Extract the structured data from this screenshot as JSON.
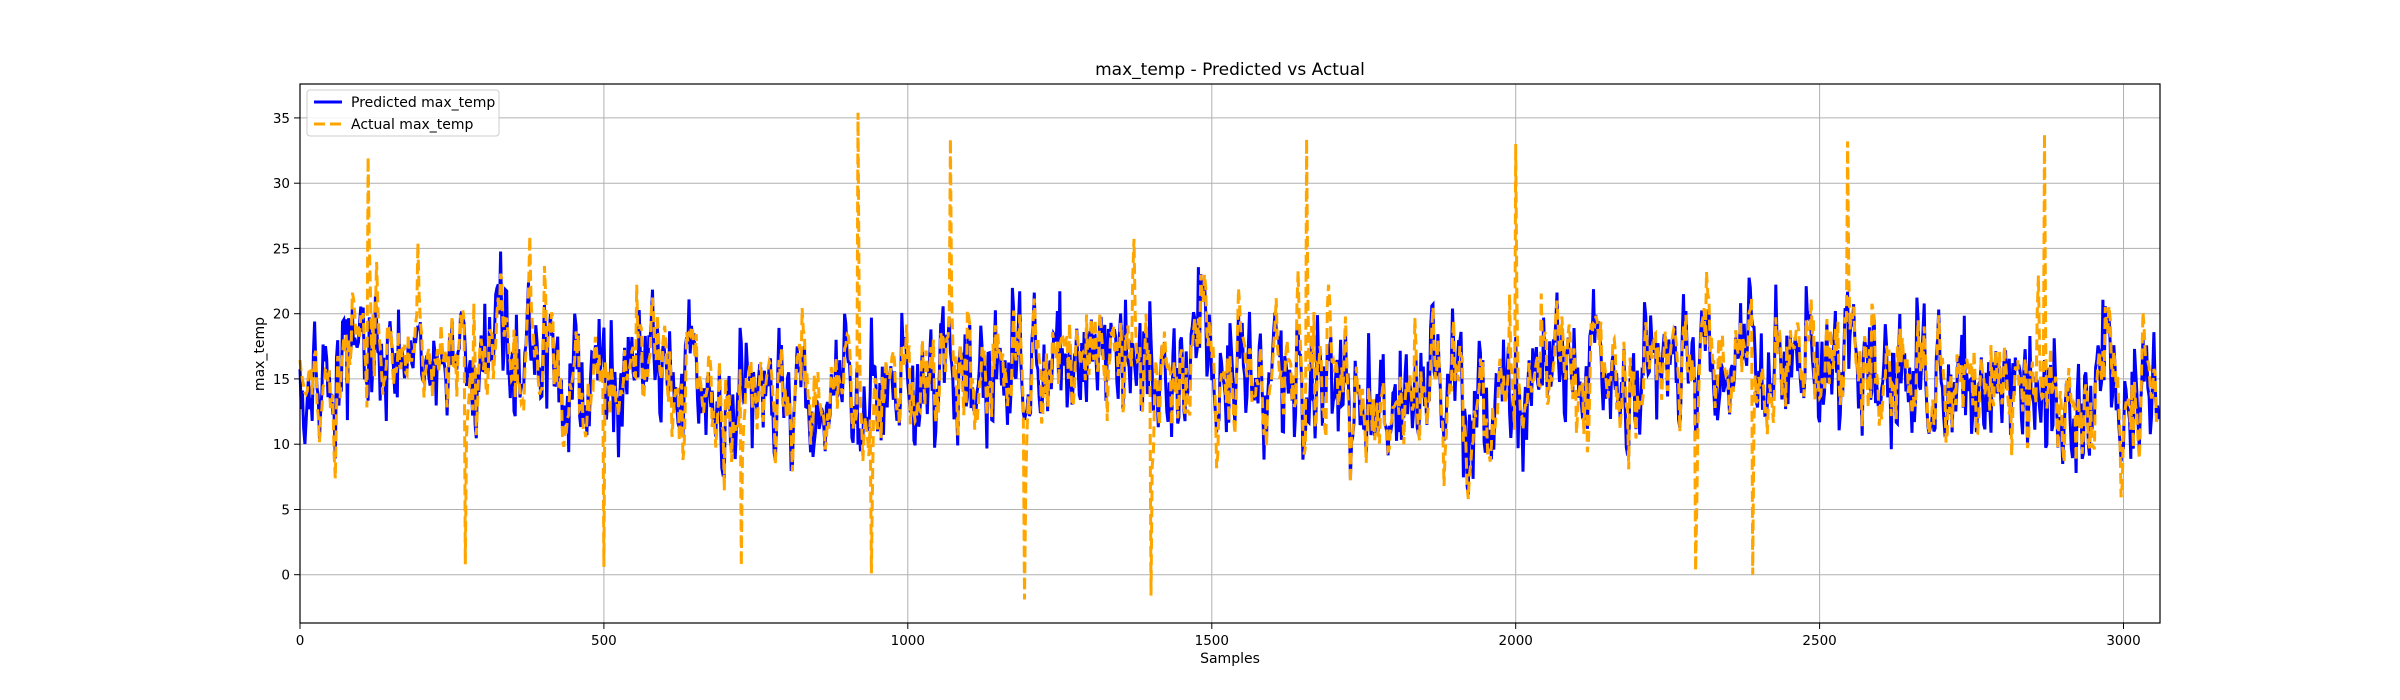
{
  "chart_data": {
    "type": "line",
    "title": "max_temp - Predicted vs Actual",
    "xlabel": "Samples",
    "ylabel": "max_temp",
    "xlim": [
      0,
      3060
    ],
    "ylim": [
      -3.7,
      37.6
    ],
    "xticks": [
      0,
      500,
      1000,
      1500,
      2000,
      2500,
      3000
    ],
    "yticks": [
      0,
      5,
      10,
      15,
      20,
      25,
      30,
      35
    ],
    "grid": true,
    "legend_position": "upper left",
    "n_samples": 3060,
    "series": [
      {
        "name": "Predicted max_temp",
        "color": "#0000ff",
        "style": "solid",
        "summary": {
          "min": 5.0,
          "max": 26.0,
          "typical_low": 9,
          "typical_high": 23
        }
      },
      {
        "name": "Actual max_temp",
        "color": "#ffa500",
        "style": "dashed",
        "summary": {
          "min": -1.9,
          "max": 35.4,
          "typical_low": 6,
          "typical_high": 28
        }
      }
    ],
    "actual_extremes": [
      {
        "x": 112,
        "y": 32.0
      },
      {
        "x": 272,
        "y": 0.8
      },
      {
        "x": 500,
        "y": 0.6
      },
      {
        "x": 725,
        "y": 0.7
      },
      {
        "x": 917,
        "y": 35.4
      },
      {
        "x": 940,
        "y": 0.1
      },
      {
        "x": 1070,
        "y": 33.4
      },
      {
        "x": 1192,
        "y": -1.9
      },
      {
        "x": 1400,
        "y": -1.6
      },
      {
        "x": 1655,
        "y": 33.4
      },
      {
        "x": 2000,
        "y": 33.0
      },
      {
        "x": 2295,
        "y": 0.3
      },
      {
        "x": 2390,
        "y": 0.0
      },
      {
        "x": 2545,
        "y": 33.2
      },
      {
        "x": 2870,
        "y": 33.8
      }
    ]
  }
}
